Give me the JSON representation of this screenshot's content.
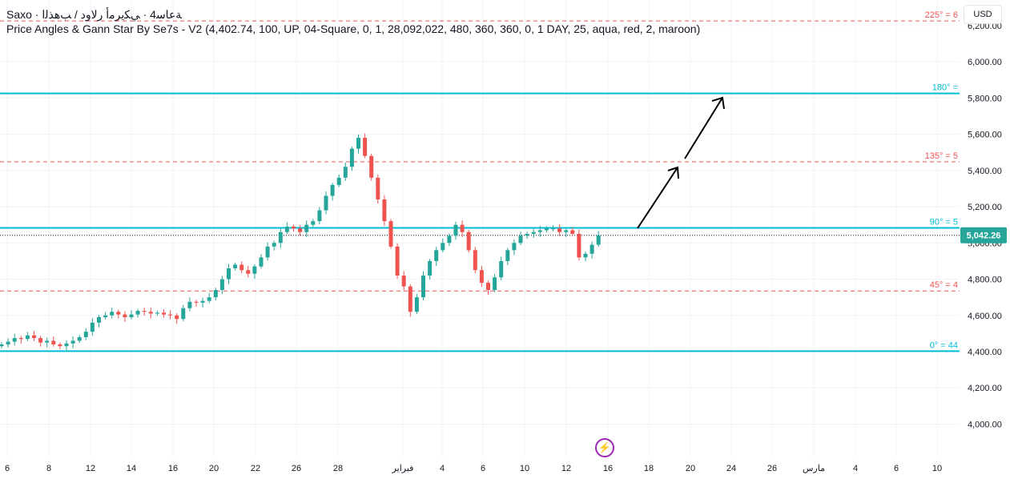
{
  "header": {
    "symbol_line": "Saxo · ﺔﻋﺎﺳ4 · ﻲﻜﻳﺮﻣﺃ ﺭﻻﻭﺩ / ﺐﻫﺬﻟﺍ",
    "study_line": "Price Angles & Gann Star By Se7s - V2 (4,402.74, 100, UP, 04-Square, 0, 1, 28,092,022, 480, 360, 360, 0, 1 DAY, 25, aqua, red, 2, maroon)"
  },
  "currency_button": "USD",
  "icons": {
    "alert": "lightning-icon"
  },
  "colors": {
    "up": "#26a69a",
    "down": "#ef5350",
    "aqua_level": "#00bcd4",
    "red_level": "#ef5350",
    "last_price": "#26a69a",
    "arrow": "#000000"
  },
  "chart_data": {
    "type": "candlestick",
    "price_axis": {
      "min": 3900,
      "max": 6260,
      "ticks": [
        "4,000.00",
        "4,200.00",
        "4,400.00",
        "4,600.00",
        "4,800.00",
        "5,000.00",
        "5,200.00",
        "5,400.00",
        "5,600.00",
        "5,800.00",
        "6,000.00",
        "6,200.00"
      ],
      "tick_values": [
        4000,
        4200,
        4400,
        4600,
        4800,
        5000,
        5200,
        5400,
        5600,
        5800,
        6000,
        6200
      ]
    },
    "time_axis": {
      "labels": [
        "6",
        "8",
        "12",
        "14",
        "16",
        "20",
        "22",
        "26",
        "28",
        "فبراير",
        "4",
        "6",
        "10",
        "12",
        "16",
        "18",
        "20",
        "24",
        "26",
        "مارس",
        "4",
        "6",
        "10"
      ]
    },
    "last_price": {
      "value": 5042.26,
      "label": "5,042.26"
    },
    "levels": [
      {
        "label": "225° = 6",
        "value": 6225,
        "style": "dashed",
        "color": "red"
      },
      {
        "label": "180° = ",
        "value": 5825,
        "style": "solid",
        "color": "aqua"
      },
      {
        "label": "135° = 5",
        "value": 5448,
        "style": "dashed",
        "color": "red"
      },
      {
        "label": "90° = 5",
        "value": 5083,
        "style": "solid",
        "color": "aqua"
      },
      {
        "label": "45° = 4",
        "value": 4735,
        "style": "dashed",
        "color": "red"
      },
      {
        "label": "0° = 44",
        "value": 4403,
        "style": "solid",
        "color": "aqua"
      }
    ],
    "close_series": [
      4440,
      4455,
      4475,
      4470,
      4490,
      4475,
      4450,
      4460,
      4440,
      4430,
      4445,
      4460,
      4480,
      4510,
      4560,
      4590,
      4600,
      4620,
      4605,
      4590,
      4605,
      4625,
      4620,
      4610,
      4615,
      4605,
      4600,
      4580,
      4640,
      4675,
      4670,
      4680,
      4700,
      4740,
      4800,
      4860,
      4880,
      4850,
      4830,
      4870,
      4920,
      4980,
      5000,
      5060,
      5090,
      5080,
      5060,
      5100,
      5120,
      5180,
      5260,
      5320,
      5360,
      5420,
      5520,
      5580,
      5480,
      5360,
      5240,
      5120,
      4980,
      4820,
      4760,
      4620,
      4700,
      4820,
      4900,
      4960,
      5000,
      5040,
      5100,
      5060,
      4960,
      4850,
      4780,
      4740,
      4810,
      4900,
      4960,
      5000,
      5040,
      5050,
      5060,
      5070,
      5080,
      5080,
      5060,
      5070,
      5050,
      4920,
      4940,
      4990,
      5042
    ]
  }
}
